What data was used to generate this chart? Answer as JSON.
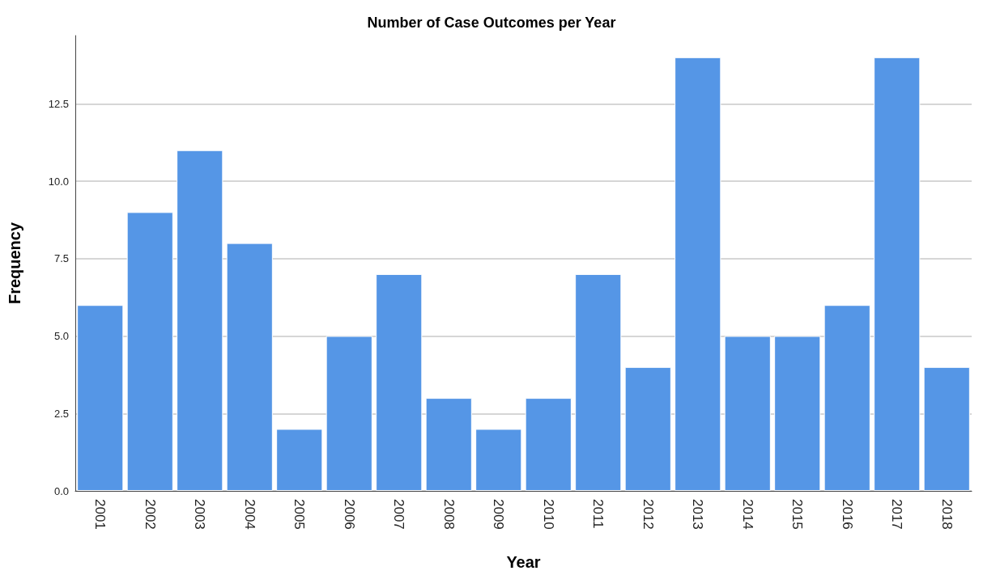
{
  "chart_data": {
    "type": "bar",
    "title": "Number of Case Outcomes per Year",
    "xlabel": "Year",
    "ylabel": "Frequency",
    "categories": [
      "2001",
      "2002",
      "2003",
      "2004",
      "2005",
      "2006",
      "2007",
      "2008",
      "2009",
      "2010",
      "2011",
      "2012",
      "2013",
      "2014",
      "2015",
      "2016",
      "2017",
      "2018"
    ],
    "values": [
      6,
      9,
      11,
      8,
      2,
      5,
      7,
      3,
      2,
      3,
      7,
      4,
      14,
      5,
      5,
      6,
      14,
      4
    ],
    "color": "#5596e6",
    "ylim": [
      0,
      14.7
    ],
    "yticks": [
      {
        "value": 0,
        "label": "0.0"
      },
      {
        "value": 2.5,
        "label": "2.5"
      },
      {
        "value": 5,
        "label": "5.0"
      },
      {
        "value": 7.5,
        "label": "7.5"
      },
      {
        "value": 10,
        "label": "10.0"
      },
      {
        "value": 12.5,
        "label": "12.5"
      }
    ],
    "grid": "y"
  }
}
